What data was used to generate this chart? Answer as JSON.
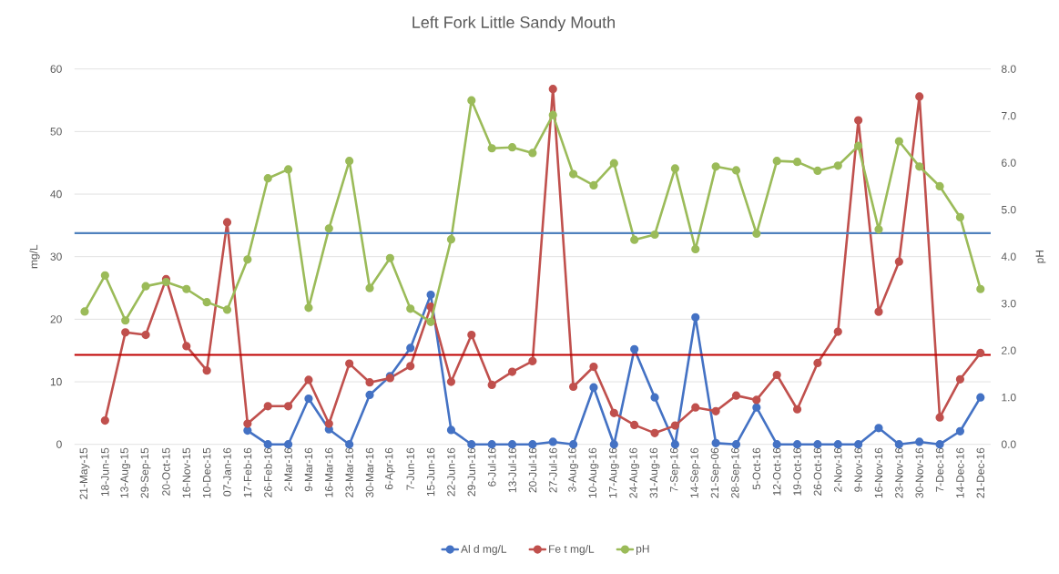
{
  "chart_data": {
    "type": "line",
    "title": "Left Fork Little Sandy Mouth",
    "ylabel": "mg/L",
    "y2label": "pH",
    "categories": [
      "21-May-15",
      "18-Jun-15",
      "13-Aug-15",
      "29-Sep-15",
      "20-Oct-15",
      "16-Nov-15",
      "10-Dec-15",
      "07-Jan-16",
      "17-Feb-16",
      "26-Feb-16",
      "2-Mar-16",
      "9-Mar-16",
      "16-Mar-16",
      "23-Mar-16",
      "30-Mar-16",
      "6-Apr-16",
      "7-Jun-16",
      "15-Jun-16",
      "22-Jun-16",
      "29-Jun-16",
      "6-Jul-16",
      "13-Jul-16",
      "20-Jul-16",
      "27-Jul-16",
      "3-Aug-16",
      "10-Aug-16",
      "17-Aug-16",
      "24-Aug-16",
      "31-Aug-16",
      "7-Sep-16",
      "14-Sep-16",
      "21-Sep-06",
      "28-Sep-16",
      "5-Oct-16",
      "12-Oct-16",
      "19-Oct-16",
      "26-Oct-16",
      "2-Nov-16",
      "9-Nov-16",
      "16-Nov-16",
      "23-Nov-16",
      "30-Nov-16",
      "7-Dec-16",
      "14-Dec-16",
      "21-Dec-16"
    ],
    "series": [
      {
        "name": "Al d mg/L",
        "color": "#4472c4",
        "values": [
          null,
          null,
          null,
          null,
          null,
          null,
          null,
          null,
          2.2,
          0,
          0,
          7.3,
          2.4,
          0,
          7.9,
          10.9,
          15.4,
          23.9,
          2.3,
          0,
          0,
          0,
          0,
          0.4,
          0,
          9.1,
          0,
          15.2,
          7.5,
          0,
          20.3,
          0.2,
          0,
          5.9,
          0,
          0,
          0,
          0,
          0,
          2.6,
          0,
          0.4,
          0,
          2.1,
          7.5
        ]
      },
      {
        "name": "Fe t mg/L",
        "color": "#c0504d",
        "values": [
          null,
          3.8,
          17.9,
          17.5,
          26.4,
          15.7,
          11.8,
          35.5,
          3.3,
          6.1,
          6.1,
          10.3,
          3.3,
          12.9,
          9.9,
          10.6,
          12.5,
          22.0,
          10.0,
          17.5,
          9.5,
          11.6,
          13.3,
          56.8,
          9.2,
          12.4,
          5.0,
          3.1,
          1.8,
          3.0,
          5.9,
          5.3,
          7.8,
          7.1,
          11.1,
          5.6,
          13.0,
          18.0,
          51.8,
          21.2,
          29.2,
          55.6,
          4.3,
          10.4,
          14.6
        ]
      },
      {
        "name": "pH",
        "color": "#9bbb59",
        "axis": "y2",
        "values": [
          2.83,
          3.6,
          2.64,
          3.37,
          3.46,
          3.31,
          3.03,
          2.87,
          3.94,
          5.67,
          5.86,
          2.91,
          4.6,
          6.04,
          3.33,
          3.97,
          2.89,
          2.61,
          4.37,
          7.33,
          6.31,
          6.33,
          6.21,
          7.02,
          5.76,
          5.52,
          5.99,
          4.36,
          4.47,
          5.88,
          4.16,
          5.92,
          5.84,
          4.49,
          6.04,
          6.02,
          5.83,
          5.94,
          6.36,
          4.58,
          6.46,
          5.92,
          5.5,
          4.84,
          3.31
        ]
      }
    ],
    "ylim": [
      0,
      60
    ],
    "yticks": [
      0,
      10,
      20,
      30,
      40,
      50,
      60
    ],
    "y2lim": [
      0,
      8
    ],
    "y2ticks": [
      {
        "value": 0,
        "label": "0.0"
      },
      {
        "value": 1,
        "label": "1.0"
      },
      {
        "value": 2,
        "label": "2.0"
      },
      {
        "value": 3,
        "label": "3.0"
      },
      {
        "value": 4,
        "label": "4.0"
      },
      {
        "value": 5,
        "label": "5.0"
      },
      {
        "value": 6,
        "label": "6.0"
      },
      {
        "value": 7,
        "label": "7.0"
      },
      {
        "value": 8,
        "label": "8.0"
      }
    ],
    "ref_lines": [
      {
        "axis": "y2",
        "value": 4.5,
        "color": "#4f81bd"
      },
      {
        "axis": "y",
        "value": 14.3,
        "color": "#c00000"
      }
    ],
    "grid": "y",
    "legend": "bottom",
    "marker": "circle"
  }
}
